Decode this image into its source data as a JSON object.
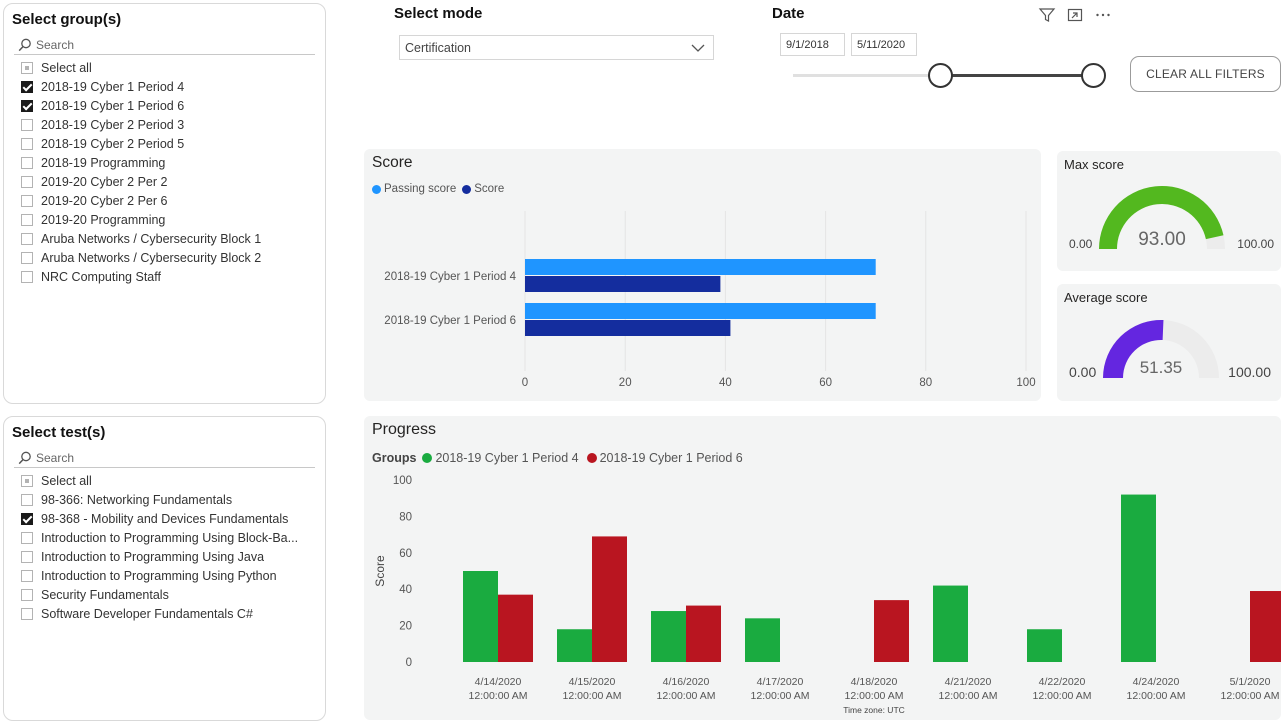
{
  "groups_slicer": {
    "title": "Select group(s)",
    "search_placeholder": "Search",
    "items": [
      {
        "label": "Select all",
        "state": "partial"
      },
      {
        "label": "2018-19 Cyber 1 Period 4",
        "state": "checked"
      },
      {
        "label": "2018-19 Cyber 1 Period 6",
        "state": "checked"
      },
      {
        "label": "2018-19 Cyber 2 Period 3",
        "state": "unchecked"
      },
      {
        "label": "2018-19 Cyber 2 Period 5",
        "state": "unchecked"
      },
      {
        "label": "2018-19 Programming",
        "state": "unchecked"
      },
      {
        "label": "2019-20 Cyber 2 Per 2",
        "state": "unchecked"
      },
      {
        "label": "2019-20 Cyber 2 Per 6",
        "state": "unchecked"
      },
      {
        "label": "2019-20 Programming",
        "state": "unchecked"
      },
      {
        "label": "Aruba Networks / Cybersecurity Block 1",
        "state": "unchecked"
      },
      {
        "label": "Aruba Networks / Cybersecurity Block 2",
        "state": "unchecked"
      },
      {
        "label": "NRC Computing Staff",
        "state": "unchecked"
      }
    ]
  },
  "tests_slicer": {
    "title": "Select test(s)",
    "search_placeholder": "Search",
    "items": [
      {
        "label": "Select all",
        "state": "partial"
      },
      {
        "label": "98-366: Networking Fundamentals",
        "state": "unchecked"
      },
      {
        "label": "98-368 - Mobility and Devices Fundamentals",
        "state": "checked"
      },
      {
        "label": "Introduction to Programming Using Block-Ba...",
        "state": "unchecked"
      },
      {
        "label": "Introduction to Programming Using Java",
        "state": "unchecked"
      },
      {
        "label": "Introduction to Programming Using Python",
        "state": "unchecked"
      },
      {
        "label": "Security Fundamentals",
        "state": "unchecked"
      },
      {
        "label": "Software Developer Fundamentals C#",
        "state": "unchecked"
      }
    ]
  },
  "mode": {
    "label": "Select mode",
    "value": "Certification"
  },
  "date": {
    "label": "Date",
    "start": "9/1/2018",
    "end": "5/11/2020"
  },
  "clear_filters_label": "CLEAR ALL FILTERS",
  "icons": [
    "filter-icon",
    "focus-mode-icon",
    "more-options-icon"
  ],
  "colors": {
    "passing": "#1f95ff",
    "score": "#142d9e",
    "cyber4": "#1aab40",
    "cyber6": "#b91520",
    "gauge_max": "#53b81f",
    "gauge_avg": "#6426e0",
    "gauge_bg": "#ececec"
  },
  "score_chart": {
    "title": "Score",
    "legend": [
      "Passing score",
      "Score"
    ],
    "chart_data": {
      "type": "bar",
      "orientation": "horizontal",
      "categories": [
        "2018-19 Cyber 1 Period 4",
        "2018-19 Cyber 1 Period 6"
      ],
      "series": [
        {
          "name": "Passing score",
          "values": [
            70,
            70
          ]
        },
        {
          "name": "Score",
          "values": [
            39,
            41
          ]
        }
      ],
      "xlim": [
        0,
        100
      ],
      "xticks": [
        "0",
        "20",
        "40",
        "60",
        "80",
        "100"
      ],
      "grid": true,
      "legend_position": "top-left"
    }
  },
  "max_gauge": {
    "title": "Max score",
    "value": 93,
    "value_label": "93.00",
    "min_label": "0.00",
    "max_label": "100.00",
    "min": 0,
    "max": 100
  },
  "avg_gauge": {
    "title": "Average score",
    "value": 51.35,
    "value_label": "51.35",
    "min_label": "0.00",
    "max_label": "100.00",
    "min": 0,
    "max": 100
  },
  "progress_chart": {
    "title": "Progress",
    "legend_title": "Groups",
    "legend": [
      "2018-19 Cyber 1 Period 4",
      "2018-19 Cyber 1 Period 6"
    ],
    "chart_data": {
      "type": "bar",
      "categories": [
        [
          "4/14/2020",
          "12:00:00 AM"
        ],
        [
          "4/15/2020",
          "12:00:00 AM"
        ],
        [
          "4/16/2020",
          "12:00:00 AM"
        ],
        [
          "4/17/2020",
          "12:00:00 AM"
        ],
        [
          "4/18/2020",
          "12:00:00 AM"
        ],
        [
          "4/21/2020",
          "12:00:00 AM"
        ],
        [
          "4/22/2020",
          "12:00:00 AM"
        ],
        [
          "4/24/2020",
          "12:00:00 AM"
        ],
        [
          "5/1/2020",
          "12:00:00 AM"
        ]
      ],
      "series": [
        {
          "name": "2018-19 Cyber 1 Period 4",
          "values": [
            50,
            18,
            28,
            24,
            null,
            42,
            18,
            92,
            null
          ]
        },
        {
          "name": "2018-19 Cyber 1 Period 6",
          "values": [
            37,
            69,
            31,
            null,
            34,
            null,
            null,
            null,
            39
          ]
        }
      ],
      "ylabel": "Score",
      "ylim": [
        0,
        100
      ],
      "yticks": [
        "0",
        "20",
        "40",
        "60",
        "80",
        "100"
      ],
      "footnote": "Time zone: UTC",
      "legend_position": "top-left"
    }
  }
}
